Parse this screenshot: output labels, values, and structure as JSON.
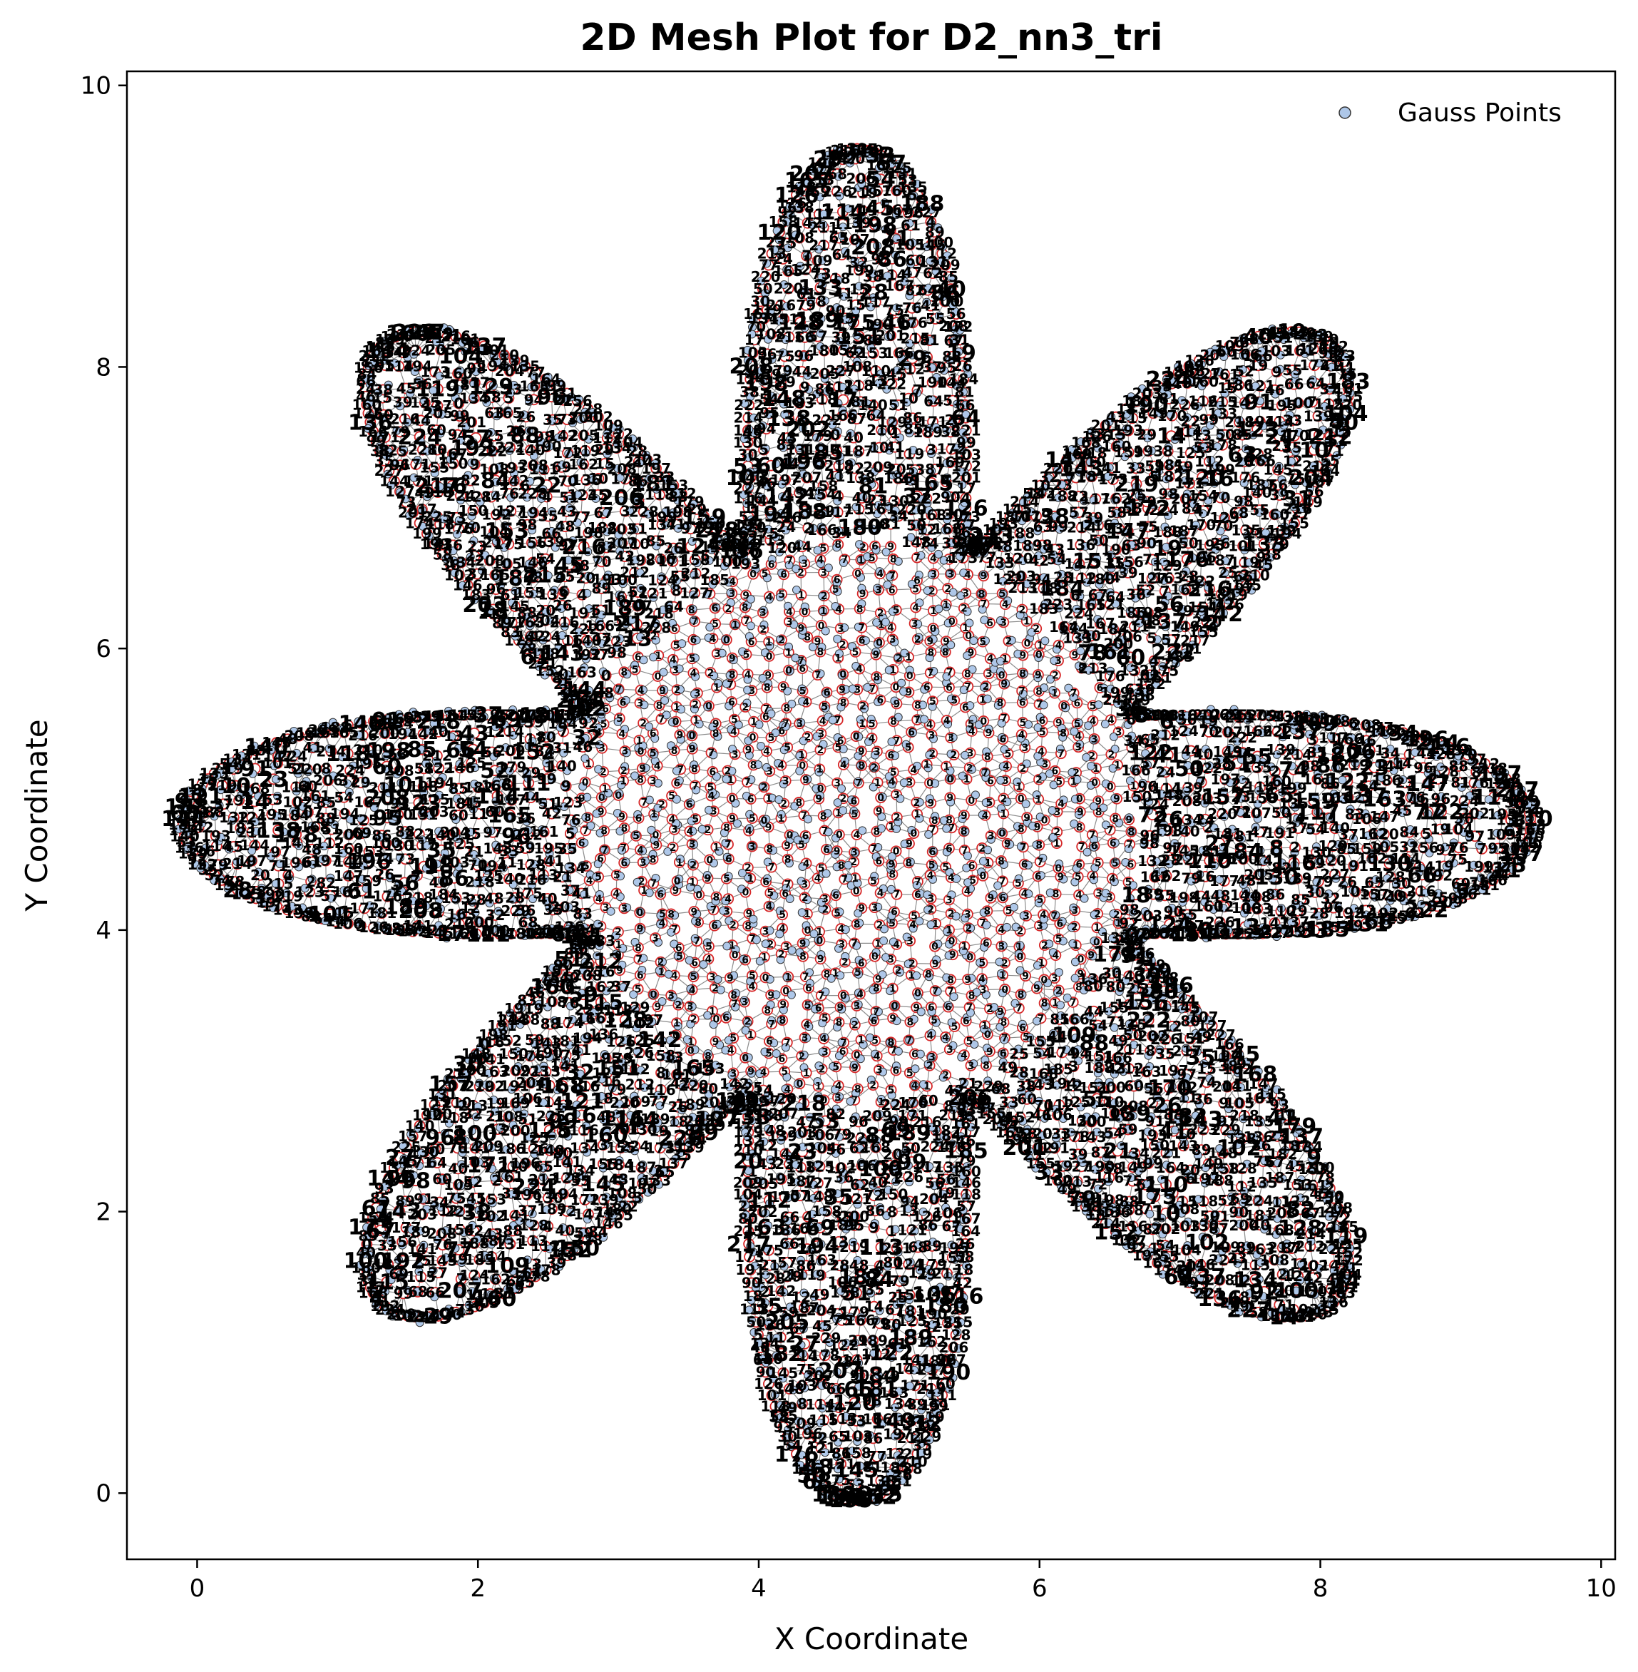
{
  "chart_data": {
    "type": "scatter",
    "title": "2D Mesh Plot for D2_nn3_tri",
    "xlabel": "X Coordinate",
    "ylabel": "Y Coordinate",
    "xlim": [
      -0.5,
      10.1
    ],
    "ylim": [
      -0.47,
      10.1
    ],
    "xticks": [
      0,
      2,
      4,
      6,
      8,
      10
    ],
    "yticks": [
      0,
      2,
      4,
      6,
      8,
      10
    ],
    "xtick_labels": [
      "0",
      "2",
      "4",
      "6",
      "8",
      "10"
    ],
    "ytick_labels": [
      "0",
      "2",
      "4",
      "6",
      "8",
      "10"
    ],
    "grid": false,
    "legend": {
      "position": "top-right",
      "entries": [
        "Gauss Points"
      ]
    },
    "shape": {
      "description": "eight-petal flower shaped triangular mesh",
      "center": [
        4.7,
        4.75
      ],
      "petal_count": 8,
      "core_radius": 2.1,
      "petal_tip_radius": 4.8
    },
    "series": [
      {
        "name": "Gauss Points",
        "marker": "circle",
        "color": "#aec7e8",
        "edge": "#333333"
      }
    ],
    "node_label_range": [
      0,
      230
    ],
    "colors": {
      "mesh_edge": "#8c8c8c",
      "node_ring": "#d62728",
      "gauss_fill": "#aec7e8",
      "label": "#000000"
    }
  }
}
